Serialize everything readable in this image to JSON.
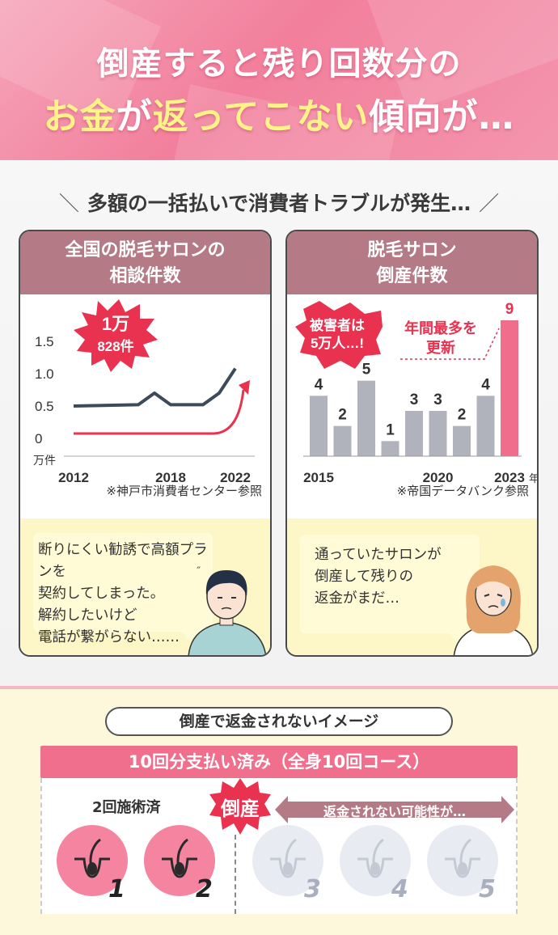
{
  "hero": {
    "line1": "倒産すると残り回数分の",
    "line2_yellow": "お金",
    "line2_mid1": "が",
    "line2_yellow2": "返ってこない",
    "line2_end": "傾向が…"
  },
  "section": {
    "title": "多額の一括払いで消費者トラブルが発生…",
    "slash_left": "＼",
    "slash_right": "／"
  },
  "card_left": {
    "title_line1": "全国の脱毛サロンの",
    "title_line2": "相談件数",
    "badge_line1": "1万",
    "badge_line2": "828件",
    "note": "※神戸市消費者センター参照",
    "quote": [
      "断りにくい勧誘で高額プランを",
      "契約してしまった。",
      "解約したいけど",
      "電話が繋がらない……"
    ]
  },
  "card_right": {
    "title_line1": "脱毛サロン",
    "title_line2": "倒産件数",
    "badge_line1": "被害者は",
    "badge_line2": "5万人…!",
    "callout_line1": "年間最多を",
    "callout_line2": "更新",
    "note": "※帝国データバンク参照",
    "quote": [
      "通っていたサロンが",
      "倒産して残りの",
      "返金がまだ…"
    ]
  },
  "chart_data": [
    {
      "type": "line",
      "title": "全国の脱毛サロンの相談件数",
      "x_ticks": [
        "2012",
        "2018",
        "2022"
      ],
      "y_ticks": [
        "1.5",
        "1.0",
        "0.5",
        "0"
      ],
      "ylabel": "万件",
      "ylim": [
        0,
        1.5
      ],
      "series": [
        {
          "x": [
            2012,
            2016,
            2017,
            2018,
            2020,
            2021,
            2022
          ],
          "y": [
            0.5,
            0.52,
            0.7,
            0.52,
            0.52,
            0.7,
            1.08
          ]
        }
      ],
      "annotation": "1万828件"
    },
    {
      "type": "bar",
      "title": "脱毛サロン倒産件数",
      "categories": [
        "2015",
        "2016",
        "2017",
        "2018",
        "2019",
        "2020",
        "2021",
        "2022",
        "2023"
      ],
      "values": [
        4,
        2,
        5,
        1,
        3,
        3,
        2,
        4,
        9
      ],
      "x_tick_labels": [
        "2015",
        "2020",
        "2023"
      ],
      "x_unit": "年",
      "highlight_color": "#f06d8c",
      "bar_color": "#b0b3bc"
    }
  ],
  "bottom": {
    "pill": "倒産で返金されないイメージ",
    "banner": "10回分支払い済み（全身10回コース）",
    "done_label": "2回施術済",
    "tousan": "倒産",
    "arrow_text": "返金されない可能性が…",
    "sessions": [
      "1",
      "2",
      "3",
      "4",
      "5"
    ]
  }
}
